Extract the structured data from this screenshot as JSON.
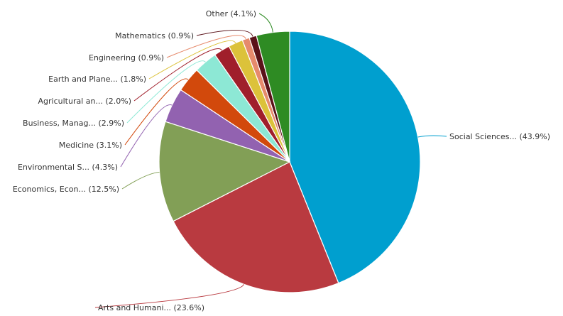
{
  "chart_data": {
    "type": "pie",
    "slices": [
      {
        "label": "Social Sciences... (43.9%)",
        "value": 43.9,
        "color": "#009fcf"
      },
      {
        "label": "Arts and Humani... (23.6%)",
        "value": 23.6,
        "color": "#b93a40"
      },
      {
        "label": "Economics, Econ... (12.5%)",
        "value": 12.5,
        "color": "#829f56"
      },
      {
        "label": "Environmental S... (4.3%)",
        "value": 4.3,
        "color": "#9262b0"
      },
      {
        "label": "Medicine (3.1%)",
        "value": 3.1,
        "color": "#d2490c"
      },
      {
        "label": "Business, Manag... (2.9%)",
        "value": 2.9,
        "color": "#8de8d5"
      },
      {
        "label": "Agricultural an... (2.0%)",
        "value": 2.0,
        "color": "#a01f2b"
      },
      {
        "label": "Earth and Plane... (1.8%)",
        "value": 1.8,
        "color": "#dcc23a"
      },
      {
        "label": "Engineering (0.9%)",
        "value": 0.9,
        "color": "#e68a6c"
      },
      {
        "label": "Mathematics (0.9%)",
        "value": 0.9,
        "color": "#5a1219"
      },
      {
        "label": "Other (4.1%)",
        "value": 4.1,
        "color": "#2e8b23"
      }
    ]
  }
}
